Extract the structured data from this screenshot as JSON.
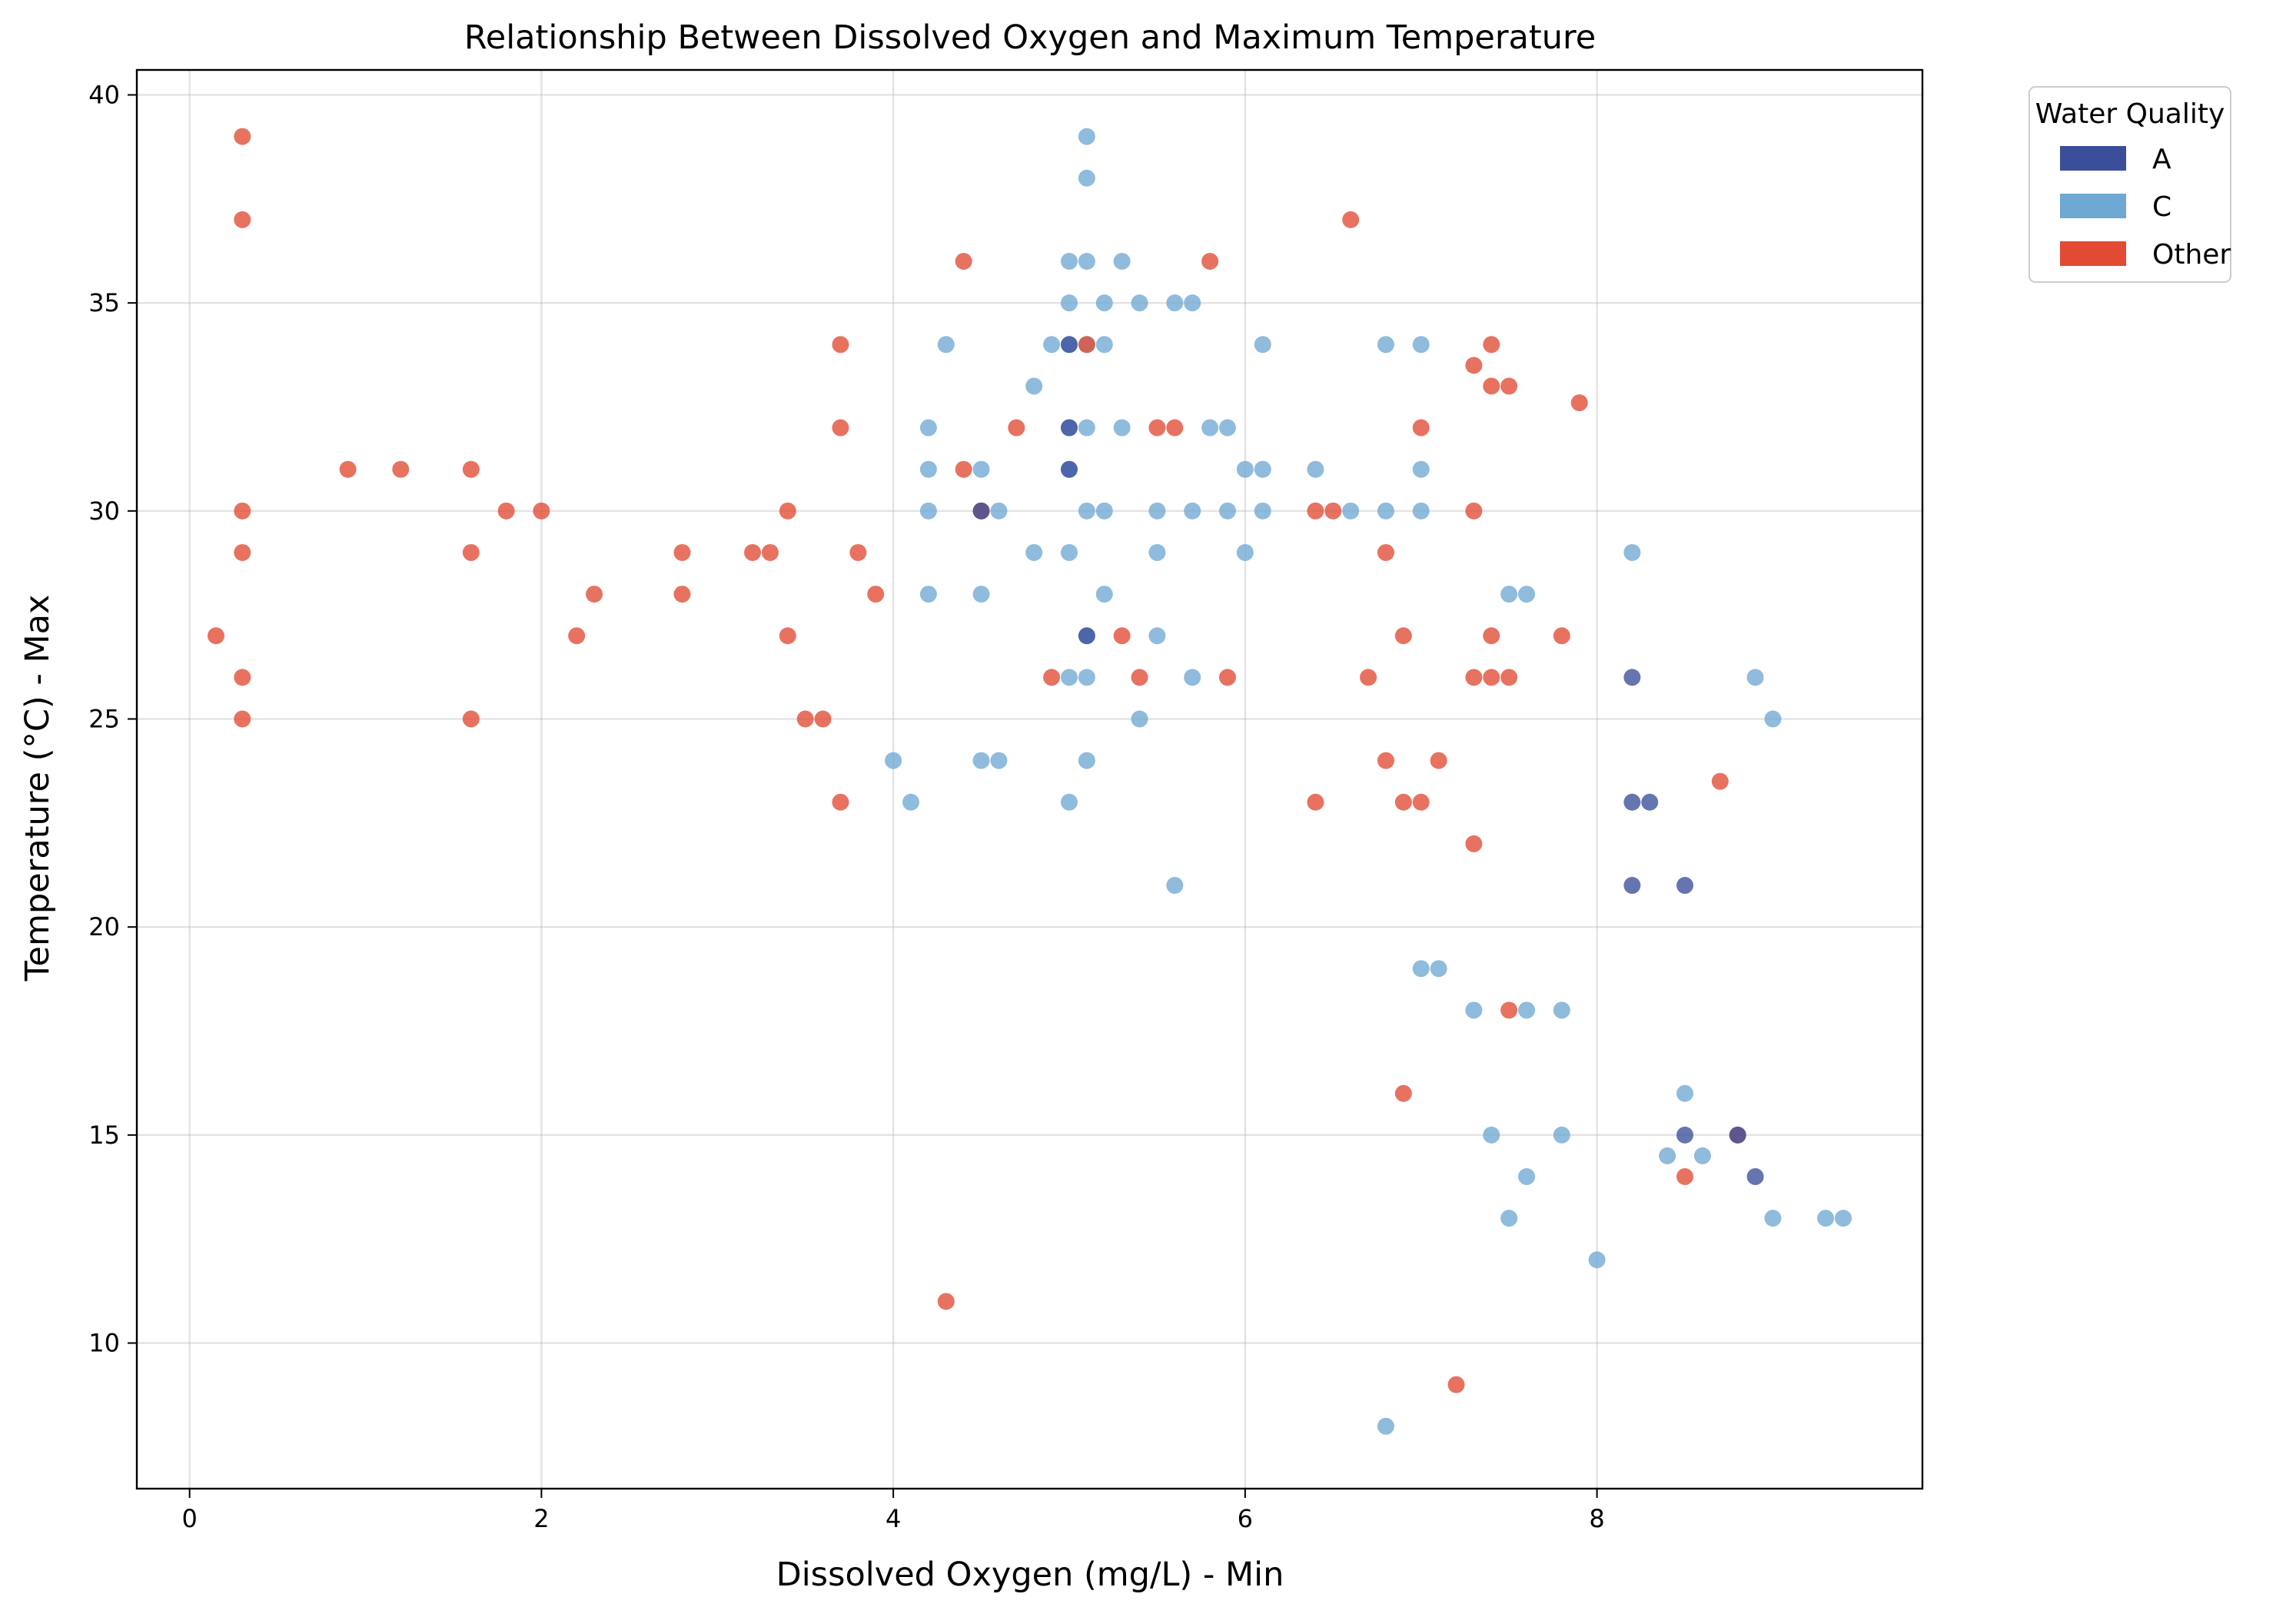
{
  "chart_data": {
    "type": "scatter",
    "title": "Relationship Between Dissolved Oxygen and Maximum Temperature",
    "xlabel": "Dissolved Oxygen (mg/L) - Min",
    "ylabel": "Temperature (°C) - Max",
    "xlim": [
      -0.3,
      9.85
    ],
    "ylim": [
      6.5,
      40.6
    ],
    "xticks": [
      0,
      2,
      4,
      6,
      8
    ],
    "yticks": [
      10,
      15,
      20,
      25,
      30,
      35,
      40
    ],
    "grid": true,
    "legend": {
      "title": "Water Quality",
      "placement": "outside-top-right",
      "entries": [
        {
          "label": "A",
          "color": "#3a4e9a"
        },
        {
          "label": "C",
          "color": "#6fa8d3"
        },
        {
          "label": "Other",
          "color": "#e24a33"
        }
      ]
    },
    "series": [
      {
        "name": "A",
        "color": "#3a4e9a",
        "points": [
          [
            5.0,
            31
          ],
          [
            5.1,
            27
          ],
          [
            4.5,
            30
          ],
          [
            8.2,
            26
          ],
          [
            8.2,
            23
          ],
          [
            8.3,
            23
          ],
          [
            8.2,
            21
          ],
          [
            8.5,
            21
          ],
          [
            8.5,
            15
          ],
          [
            8.8,
            15
          ],
          [
            8.9,
            14
          ],
          [
            5.0,
            32
          ],
          [
            5.0,
            34
          ]
        ]
      },
      {
        "name": "C",
        "color": "#6fa8d3",
        "points": [
          [
            5.1,
            39
          ],
          [
            5.1,
            38
          ],
          [
            5.0,
            36
          ],
          [
            5.1,
            36
          ],
          [
            5.3,
            36
          ],
          [
            5.0,
            35
          ],
          [
            5.2,
            35
          ],
          [
            5.4,
            35
          ],
          [
            5.6,
            35
          ],
          [
            5.7,
            35
          ],
          [
            4.3,
            34
          ],
          [
            4.9,
            34
          ],
          [
            5.0,
            34
          ],
          [
            5.1,
            34
          ],
          [
            5.2,
            34
          ],
          [
            6.1,
            34
          ],
          [
            6.8,
            34
          ],
          [
            7.0,
            34
          ],
          [
            4.8,
            33
          ],
          [
            4.2,
            32
          ],
          [
            5.0,
            32
          ],
          [
            5.1,
            32
          ],
          [
            5.3,
            32
          ],
          [
            5.8,
            32
          ],
          [
            5.9,
            32
          ],
          [
            4.2,
            31
          ],
          [
            4.5,
            31
          ],
          [
            5.0,
            31
          ],
          [
            6.0,
            31
          ],
          [
            6.1,
            31
          ],
          [
            6.4,
            31
          ],
          [
            7.0,
            31
          ],
          [
            4.2,
            30
          ],
          [
            4.6,
            30
          ],
          [
            5.1,
            30
          ],
          [
            5.2,
            30
          ],
          [
            5.5,
            30
          ],
          [
            5.7,
            30
          ],
          [
            5.9,
            30
          ],
          [
            6.1,
            30
          ],
          [
            6.6,
            30
          ],
          [
            6.8,
            30
          ],
          [
            7.0,
            30
          ],
          [
            4.8,
            29
          ],
          [
            5.0,
            29
          ],
          [
            5.5,
            29
          ],
          [
            6.0,
            29
          ],
          [
            8.2,
            29
          ],
          [
            4.2,
            28
          ],
          [
            4.5,
            28
          ],
          [
            5.2,
            28
          ],
          [
            7.5,
            28
          ],
          [
            7.6,
            28
          ],
          [
            5.1,
            27
          ],
          [
            5.5,
            27
          ],
          [
            5.0,
            26
          ],
          [
            5.1,
            26
          ],
          [
            5.7,
            26
          ],
          [
            8.9,
            26
          ],
          [
            5.4,
            25
          ],
          [
            9.0,
            25
          ],
          [
            4.0,
            24
          ],
          [
            4.5,
            24
          ],
          [
            4.6,
            24
          ],
          [
            5.1,
            24
          ],
          [
            4.1,
            23
          ],
          [
            5.0,
            23
          ],
          [
            5.6,
            21
          ],
          [
            7.0,
            19
          ],
          [
            7.1,
            19
          ],
          [
            7.3,
            18
          ],
          [
            7.6,
            18
          ],
          [
            7.8,
            18
          ],
          [
            8.5,
            16
          ],
          [
            7.4,
            15
          ],
          [
            7.8,
            15
          ],
          [
            8.4,
            14.5
          ],
          [
            8.6,
            14.5
          ],
          [
            7.6,
            14
          ],
          [
            7.5,
            13
          ],
          [
            9.0,
            13
          ],
          [
            9.3,
            13
          ],
          [
            9.4,
            13
          ],
          [
            8.0,
            12
          ],
          [
            6.8,
            8
          ]
        ]
      },
      {
        "name": "Other",
        "color": "#e24a33",
        "points": [
          [
            0.3,
            39
          ],
          [
            0.3,
            37
          ],
          [
            0.15,
            27
          ],
          [
            0.3,
            30
          ],
          [
            0.3,
            29
          ],
          [
            0.3,
            26
          ],
          [
            0.3,
            25
          ],
          [
            0.9,
            31
          ],
          [
            1.2,
            31
          ],
          [
            1.6,
            31
          ],
          [
            1.6,
            29
          ],
          [
            1.6,
            25
          ],
          [
            1.8,
            30
          ],
          [
            2.0,
            30
          ],
          [
            2.2,
            27
          ],
          [
            2.3,
            28
          ],
          [
            2.8,
            29
          ],
          [
            2.8,
            28
          ],
          [
            3.2,
            29
          ],
          [
            3.3,
            29
          ],
          [
            3.4,
            30
          ],
          [
            3.4,
            27
          ],
          [
            3.5,
            25
          ],
          [
            3.6,
            25
          ],
          [
            3.7,
            34
          ],
          [
            3.7,
            32
          ],
          [
            3.7,
            23
          ],
          [
            3.8,
            29
          ],
          [
            3.9,
            28
          ],
          [
            4.3,
            11
          ],
          [
            4.4,
            36
          ],
          [
            4.4,
            31
          ],
          [
            4.5,
            30
          ],
          [
            4.7,
            32
          ],
          [
            4.9,
            26
          ],
          [
            5.1,
            34
          ],
          [
            5.3,
            27
          ],
          [
            5.4,
            26
          ],
          [
            5.5,
            32
          ],
          [
            5.6,
            32
          ],
          [
            5.8,
            36
          ],
          [
            5.9,
            26
          ],
          [
            6.4,
            30
          ],
          [
            6.5,
            30
          ],
          [
            6.4,
            23
          ],
          [
            6.6,
            37
          ],
          [
            6.7,
            26
          ],
          [
            6.8,
            29
          ],
          [
            6.8,
            24
          ],
          [
            6.9,
            27
          ],
          [
            6.9,
            23
          ],
          [
            6.9,
            16
          ],
          [
            7.0,
            32
          ],
          [
            7.0,
            23
          ],
          [
            7.1,
            24
          ],
          [
            7.2,
            9
          ],
          [
            7.3,
            33.5
          ],
          [
            7.3,
            30
          ],
          [
            7.3,
            26
          ],
          [
            7.3,
            22
          ],
          [
            7.4,
            34
          ],
          [
            7.4,
            33
          ],
          [
            7.4,
            27
          ],
          [
            7.4,
            26
          ],
          [
            7.5,
            33
          ],
          [
            7.5,
            26
          ],
          [
            7.5,
            18
          ],
          [
            7.8,
            27
          ],
          [
            7.9,
            32.6
          ],
          [
            8.5,
            14
          ],
          [
            8.7,
            23.5
          ],
          [
            8.8,
            15
          ]
        ]
      }
    ]
  }
}
